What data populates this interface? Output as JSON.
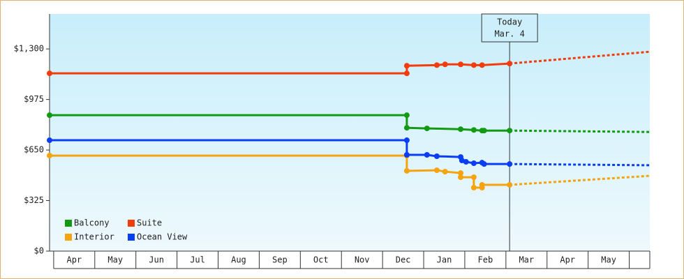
{
  "chart_data": {
    "type": "line",
    "annotation": {
      "x": 11.09,
      "lines": [
        "Today",
        "Mar. 4"
      ]
    },
    "months": [
      "Apr",
      "May",
      "Jun",
      "Jul",
      "Aug",
      "Sep",
      "Oct",
      "Nov",
      "Dec",
      "Jan",
      "Feb",
      "Mar",
      "Apr",
      "May"
    ],
    "xlim": [
      -0.1,
      14.5
    ],
    "ylim": [
      0,
      1525
    ],
    "yticks": [
      {
        "value": 0,
        "label": "$0"
      },
      {
        "value": 325,
        "label": "$325"
      },
      {
        "value": 650,
        "label": "$650"
      },
      {
        "value": 975,
        "label": "$975"
      },
      {
        "value": 1300,
        "label": "$1,300"
      }
    ],
    "series": [
      {
        "name": "Balcony",
        "color": "#139a13",
        "x": [
          -0.1,
          8.59,
          8.59,
          9.08,
          9.9,
          10.22,
          10.42,
          10.47,
          11.09
        ],
        "values": [
          874,
          874,
          793,
          789,
          784,
          779,
          775,
          775,
          775
        ],
        "forecast": {
          "x": [
            11.09,
            14.5
          ],
          "values": [
            775,
            766
          ]
        }
      },
      {
        "name": "Suite",
        "color": "#f23c0c",
        "x": [
          -0.1,
          8.59,
          8.59,
          9.32,
          9.52,
          9.9,
          10.22,
          10.42,
          11.09
        ],
        "values": [
          1143,
          1143,
          1192,
          1196,
          1201,
          1201,
          1196,
          1196,
          1206
        ],
        "forecast": {
          "x": [
            11.09,
            14.5
          ],
          "values": [
            1206,
            1282
          ]
        }
      },
      {
        "name": "Interior",
        "color": "#f5a30f",
        "x": [
          -0.1,
          8.59,
          8.59,
          9.32,
          9.52,
          9.9,
          9.9,
          10.22,
          10.22,
          10.42,
          10.42,
          11.09
        ],
        "values": [
          614,
          614,
          516,
          520,
          511,
          502,
          475,
          475,
          408,
          408,
          426,
          426
        ],
        "forecast": {
          "x": [
            11.09,
            14.5
          ],
          "values": [
            426,
            484
          ]
        }
      },
      {
        "name": "Ocean View",
        "color": "#0a3ef5",
        "x": [
          -0.1,
          8.59,
          8.59,
          9.08,
          9.32,
          9.9,
          9.93,
          10.03,
          10.22,
          10.42,
          10.47,
          11.09
        ],
        "values": [
          713,
          713,
          619,
          619,
          610,
          605,
          583,
          574,
          565,
          569,
          560,
          560
        ],
        "forecast": {
          "x": [
            11.09,
            14.5
          ],
          "values": [
            560,
            552
          ]
        }
      }
    ]
  }
}
